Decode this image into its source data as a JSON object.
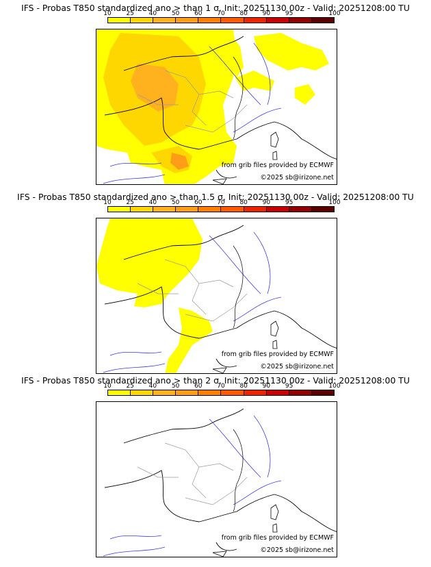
{
  "colorbar": {
    "ticks": [
      "10",
      "25",
      "40",
      "50",
      "60",
      "70",
      "80",
      "90",
      "95",
      "100"
    ],
    "colors": [
      "#ffff00",
      "#ffd700",
      "#ffb21e",
      "#ff9d19",
      "#ff7f00",
      "#ff5a00",
      "#ee2400",
      "#c80000",
      "#930000",
      "#5a0000"
    ]
  },
  "credits": {
    "source": "from grib files provided by ECMWF",
    "copyright": "©2025 sb@irizone.net"
  },
  "panels": [
    {
      "title": "IFS - Probas T850  standardized ano > than 1 σ, Init: 20251130 00z - Valid: 20251208:00 TU"
    },
    {
      "title": "IFS - Probas T850  standardized ano > than 1.5 σ, Init: 20251130 00z - Valid: 20251208:00 TU"
    },
    {
      "title": "IFS - Probas T850  standardized ano > than 2 σ, Init: 20251130 00z - Valid: 20251208:00 TU"
    }
  ]
}
